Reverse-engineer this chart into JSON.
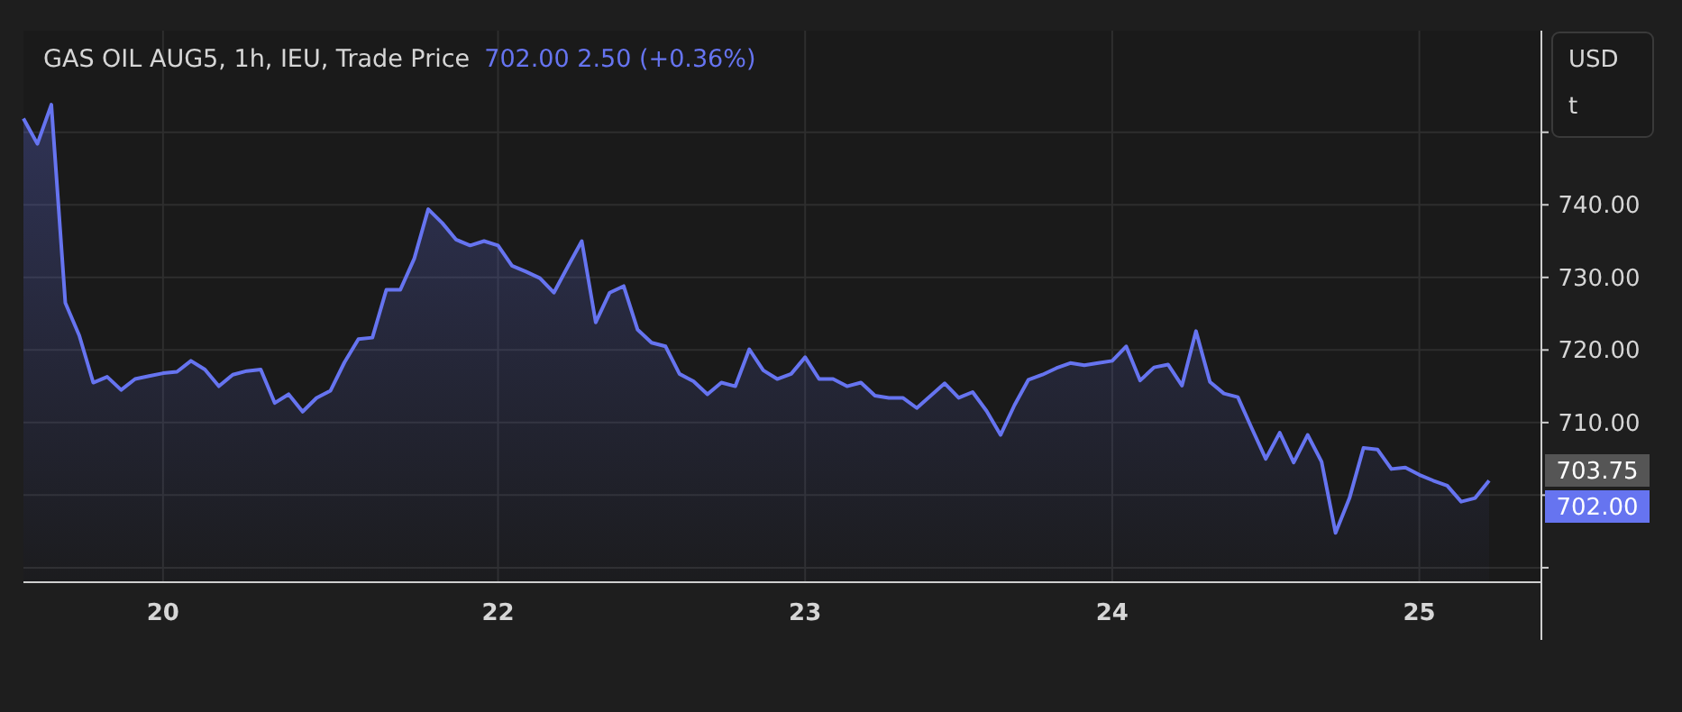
{
  "chart_data": {
    "type": "area",
    "title": "GAS OIL AUG5, 1h, IEU, Trade Price",
    "subtitle": "702.00  2.50 (+0.36%)",
    "categories": [
      null,
      null,
      null,
      null,
      null,
      null,
      null,
      null,
      null,
      null,
      "20",
      null,
      null,
      null,
      null,
      null,
      null,
      null,
      null,
      null,
      null,
      null,
      null,
      null,
      null,
      null,
      null,
      null,
      null,
      null,
      null,
      null,
      null,
      null,
      "22",
      null,
      null,
      null,
      null,
      null,
      null,
      null,
      null,
      null,
      null,
      null,
      null,
      null,
      null,
      null,
      null,
      null,
      null,
      null,
      null,
      null,
      "23",
      null,
      null,
      null,
      null,
      null,
      null,
      null,
      null,
      null,
      null,
      null,
      null,
      null,
      null,
      null,
      null,
      null,
      null,
      null,
      null,
      null,
      "24",
      null,
      null,
      null,
      null,
      null,
      null,
      null,
      null,
      null,
      null,
      null,
      null,
      null,
      null,
      null,
      null,
      null,
      null,
      null,
      null,
      null,
      "25",
      null,
      null,
      null,
      null,
      null
    ],
    "series": [
      {
        "color": "#6674f0",
        "values": [
          751.9,
          748.4,
          753.8,
          726.5,
          722.0,
          715.5,
          716.3,
          714.5,
          716.0,
          716.4,
          716.8,
          717.0,
          718.5,
          717.3,
          715.0,
          716.6,
          717.1,
          717.3,
          712.7,
          713.9,
          711.5,
          713.4,
          714.4,
          718.3,
          721.5,
          721.7,
          728.3,
          728.3,
          732.6,
          739.4,
          737.5,
          735.2,
          734.4,
          735.0,
          734.4,
          731.6,
          730.8,
          729.9,
          727.9,
          731.5,
          735.0,
          723.8,
          727.9,
          728.8,
          722.8,
          721.0,
          720.5,
          716.7,
          715.7,
          713.9,
          715.5,
          715.0,
          720.1,
          717.2,
          716.0,
          716.7,
          719.0,
          716.0,
          716.0,
          715.0,
          715.5,
          713.7,
          713.4,
          713.4,
          712.0,
          713.7,
          715.4,
          713.4,
          714.2,
          711.6,
          708.3,
          712.4,
          715.9,
          716.6,
          717.5,
          718.2,
          717.9,
          718.2,
          718.5,
          720.5,
          715.8,
          717.6,
          718.0,
          715.1,
          722.6,
          715.6,
          714.0,
          713.5,
          709.2,
          705.0,
          708.6,
          704.5,
          708.3,
          704.6,
          694.8,
          699.6,
          706.5,
          706.3,
          703.6,
          703.8,
          702.8,
          702.0,
          701.3,
          699.1,
          699.6,
          702.0
        ]
      }
    ],
    "ylim": [
      688,
      764
    ],
    "yticks": [
      {
        "value": 690,
        "label": null
      },
      {
        "value": 700,
        "label": null
      },
      {
        "value": 710,
        "label": "710.00"
      },
      {
        "value": 720,
        "label": "720.00"
      },
      {
        "value": 730,
        "label": "730.00"
      },
      {
        "value": 740,
        "label": "740.00"
      },
      {
        "value": 750,
        "label": null
      }
    ],
    "grid": true,
    "marker": "none",
    "line_style": "solid",
    "annotations": [
      "703.75",
      "702.00",
      "USD",
      "t"
    ]
  }
}
